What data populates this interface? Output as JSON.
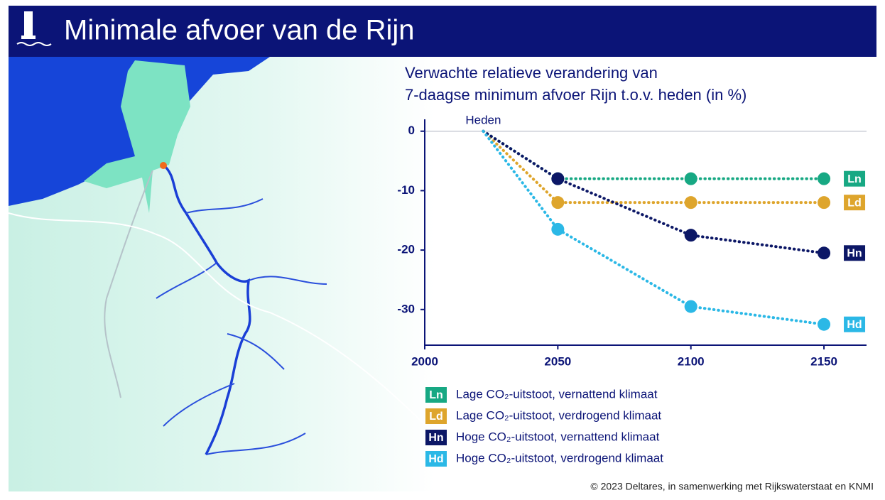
{
  "chart_data": {
    "type": "line",
    "title": "Minimale afvoer van de Rijn",
    "subtitle": [
      "Verwachte relatieve verandering van",
      "7-daagse minimum afvoer Rijn t.o.v. heden (in %)"
    ],
    "annotation": "Heden",
    "x": [
      2022,
      2050,
      2100,
      2150
    ],
    "xlim": [
      2000,
      2166
    ],
    "xticks": [
      2000,
      2050,
      2100,
      2150
    ],
    "ylim": [
      -36,
      2
    ],
    "yticks": [
      0,
      -10,
      -20,
      -30
    ],
    "series": [
      {
        "name": "Lage CO₂-uitstoot, vernattend klimaat",
        "code": "Ln",
        "color": "#17a883",
        "values": [
          0,
          -8,
          -8,
          -8
        ]
      },
      {
        "name": "Lage CO₂-uitstoot, verdrogend klimaat",
        "code": "Ld",
        "color": "#dea52c",
        "values": [
          0,
          -12,
          -12,
          -12
        ]
      },
      {
        "name": "Hoge CO₂-uitstoot, vernattend klimaat",
        "code": "Hn",
        "color": "#0c1766",
        "values": [
          0,
          -8,
          -17.5,
          -20.5
        ]
      },
      {
        "name": "Hoge CO₂-uitstoot, verdrogend klimaat",
        "code": "Hd",
        "color": "#2bb8e6",
        "values": [
          0,
          -16.5,
          -29.5,
          -32.5
        ]
      }
    ],
    "source": "© 2023 Deltares, in samenwerking met Rijkswaterstaat en KNMI"
  }
}
